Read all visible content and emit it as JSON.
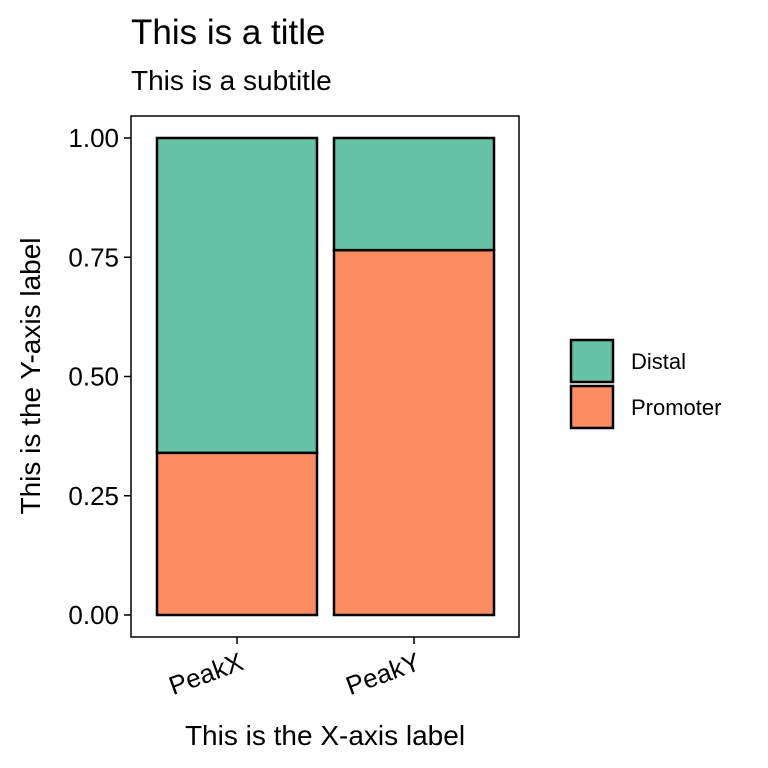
{
  "chart_data": {
    "type": "bar",
    "stacked": true,
    "title": "This is a title",
    "subtitle": "This is a subtitle",
    "xlabel": "This is the X-axis label",
    "ylabel": "This is the Y-axis label",
    "categories": [
      "PeakX",
      "PeakY"
    ],
    "series": [
      {
        "name": "Promoter",
        "values": [
          0.34,
          0.765
        ],
        "color": "#FC8D62"
      },
      {
        "name": "Distal",
        "values": [
          0.66,
          0.235
        ],
        "color": "#66C2A5"
      }
    ],
    "ylim": [
      0,
      1
    ],
    "yticks": [
      0,
      0.25,
      0.5,
      0.75,
      1
    ],
    "ytick_labels": [
      "0.00",
      "0.25",
      "0.50",
      "0.75",
      "1.00"
    ],
    "legend": {
      "position": "right",
      "entries": [
        "Distal",
        "Promoter"
      ]
    },
    "grid": false
  }
}
